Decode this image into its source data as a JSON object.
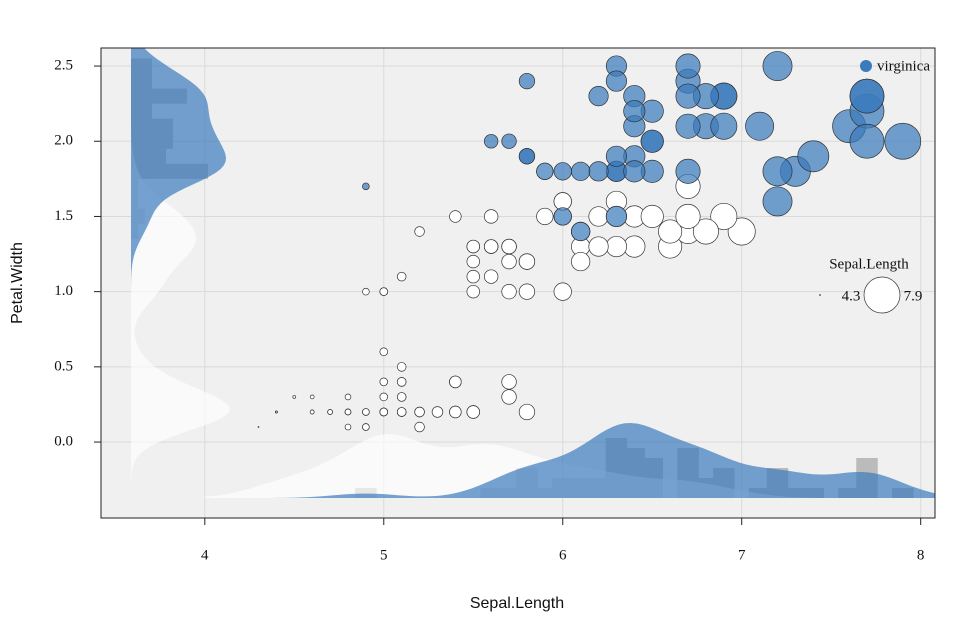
{
  "chart_data": {
    "type": "scatter",
    "x_label": "Sepal.Length",
    "y_label": "Petal.Width",
    "xlim": [
      3.42,
      8.08
    ],
    "ylim": [
      -0.505,
      2.62
    ],
    "xticks": [
      4,
      5,
      6,
      7,
      8
    ],
    "yticks": [
      {
        "value": 0,
        "label": "0.0"
      },
      0.5,
      {
        "value": 1,
        "label": "1.0"
      },
      1.5,
      {
        "value": 2,
        "label": "2.0"
      },
      2.5
    ],
    "grid": true,
    "legend": "top-right",
    "size_legend": {
      "title": "Sepal.Length",
      "values": [
        4.3,
        7.9
      ]
    },
    "series": [
      {
        "name": "virginica",
        "color": "#3b7bbd",
        "x": [
          6.3,
          5.8,
          7.1,
          6.3,
          6.5,
          7.6,
          4.9,
          7.3,
          6.7,
          7.2,
          6.5,
          6.4,
          6.8,
          5.7,
          5.8,
          6.4,
          6.5,
          7.7,
          7.7,
          6.0,
          6.9,
          5.6,
          7.7,
          6.3,
          6.7,
          7.2,
          6.2,
          6.1,
          6.4,
          7.2,
          7.4,
          7.9,
          6.4,
          6.3,
          6.1,
          7.7,
          6.3,
          6.4,
          6.0,
          6.9,
          6.7,
          6.9,
          5.8,
          6.8,
          6.7,
          6.7,
          6.3,
          6.5,
          6.2,
          5.9
        ],
        "y": [
          2.5,
          1.9,
          2.1,
          1.8,
          2.2,
          2.1,
          1.7,
          1.8,
          1.8,
          2.5,
          2.0,
          1.9,
          2.1,
          2.0,
          2.4,
          2.3,
          1.8,
          2.2,
          2.3,
          1.5,
          2.3,
          2.0,
          2.0,
          1.8,
          2.1,
          1.8,
          1.8,
          1.8,
          2.1,
          1.6,
          1.9,
          2.0,
          2.2,
          1.5,
          1.4,
          2.3,
          2.4,
          1.8,
          1.8,
          2.1,
          2.4,
          2.3,
          1.9,
          2.3,
          2.5,
          2.3,
          1.9,
          2.0,
          2.3,
          1.8
        ]
      },
      {
        "color": "#ffffff",
        "x": [
          5.1,
          4.9,
          4.7,
          4.6,
          5.0,
          5.4,
          4.6,
          5.0,
          4.4,
          4.9,
          5.4,
          4.8,
          4.8,
          4.3,
          5.8,
          5.7,
          5.4,
          5.1,
          5.7,
          5.1,
          5.4,
          5.1,
          4.6,
          5.1,
          4.8,
          5.0,
          5.0,
          5.2,
          5.2,
          4.7,
          4.8,
          5.4,
          5.2,
          5.5,
          4.9,
          5.0,
          5.5,
          4.9,
          4.4,
          5.1,
          5.0,
          4.5,
          4.4,
          5.0,
          5.1,
          4.8,
          5.1,
          4.6,
          5.3,
          5.0,
          7.0,
          6.4,
          6.9,
          5.5,
          6.5,
          5.7,
          6.3,
          4.9,
          6.6,
          5.2,
          5.0,
          5.9,
          6.0,
          6.1,
          5.6,
          6.7,
          5.6,
          5.8,
          6.2,
          5.6,
          5.9,
          6.1,
          6.3,
          6.1,
          6.4,
          6.6,
          6.8,
          6.7,
          6.0,
          5.7,
          5.5,
          5.5,
          5.8,
          6.0,
          5.4,
          6.0,
          6.7,
          6.3,
          5.6,
          5.5,
          5.5,
          6.1,
          5.8,
          5.0,
          5.6,
          5.7,
          5.7,
          6.2,
          5.1,
          5.7
        ],
        "y": [
          0.2,
          0.2,
          0.2,
          0.2,
          0.2,
          0.4,
          0.3,
          0.2,
          0.2,
          0.1,
          0.2,
          0.2,
          0.1,
          0.1,
          0.2,
          0.4,
          0.4,
          0.3,
          0.3,
          0.3,
          0.2,
          0.4,
          0.2,
          0.5,
          0.2,
          0.2,
          0.4,
          0.2,
          0.2,
          0.2,
          0.2,
          0.4,
          0.1,
          0.2,
          0.2,
          0.2,
          0.2,
          0.1,
          0.2,
          0.2,
          0.3,
          0.3,
          0.2,
          0.6,
          0.4,
          0.3,
          0.2,
          0.2,
          0.2,
          0.2,
          1.4,
          1.5,
          1.5,
          1.3,
          1.5,
          1.3,
          1.6,
          1.0,
          1.3,
          1.4,
          1.0,
          1.5,
          1.0,
          1.4,
          1.3,
          1.4,
          1.5,
          1.0,
          1.5,
          1.1,
          1.8,
          1.3,
          1.5,
          1.2,
          1.3,
          1.4,
          1.4,
          1.7,
          1.5,
          1.0,
          1.1,
          1.0,
          1.2,
          1.6,
          1.5,
          1.6,
          1.5,
          1.3,
          1.3,
          1.3,
          1.2,
          1.4,
          1.2,
          1.0,
          1.3,
          1.2,
          1.3,
          1.3,
          1.1,
          1.3
        ]
      }
    ]
  }
}
